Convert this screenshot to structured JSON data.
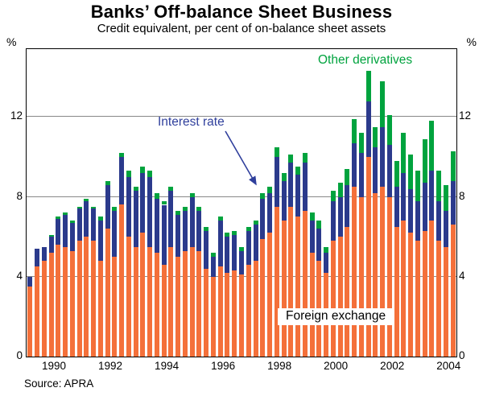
{
  "page": {
    "title": "Banks’ Off-balance Sheet Business",
    "subtitle": "Credit equivalent, per cent of on-balance sheet assets",
    "source": "Source: APRA"
  },
  "annotations": {
    "other_derivatives": "Other derivatives",
    "interest_rate": "Interest rate",
    "foreign_exchange": "Foreign exchange"
  },
  "colors": {
    "foreign_exchange": "#f4703a",
    "interest_rate": "#2b3a8c",
    "other_derivatives": "#00a33e",
    "interest_rate_annotation": "#2f3f9c",
    "other_derivatives_annotation": "#00a33e",
    "gridline": "#888888"
  },
  "chart_data": {
    "type": "bar",
    "stacked": true,
    "title": "Banks’ Off-balance Sheet Business",
    "subtitle": "Credit equivalent, per cent of on-balance sheet assets",
    "ylabel": "%",
    "ylim": [
      0,
      15.4
    ],
    "y_ticks": [
      0,
      4,
      8,
      12
    ],
    "grid": true,
    "legend_position": "in-chart annotations",
    "x": [
      "1989Q1",
      "1989Q2",
      "1989Q3",
      "1989Q4",
      "1990Q1",
      "1990Q2",
      "1990Q3",
      "1990Q4",
      "1991Q1",
      "1991Q2",
      "1991Q3",
      "1991Q4",
      "1992Q1",
      "1992Q2",
      "1992Q3",
      "1992Q4",
      "1993Q1",
      "1993Q2",
      "1993Q3",
      "1993Q4",
      "1994Q1",
      "1994Q2",
      "1994Q3",
      "1994Q4",
      "1995Q1",
      "1995Q2",
      "1995Q3",
      "1995Q4",
      "1996Q1",
      "1996Q2",
      "1996Q3",
      "1996Q4",
      "1997Q1",
      "1997Q2",
      "1997Q3",
      "1997Q4",
      "1998Q1",
      "1998Q2",
      "1998Q3",
      "1998Q4",
      "1999Q1",
      "1999Q2",
      "1999Q3",
      "1999Q4",
      "2000Q1",
      "2000Q2",
      "2000Q3",
      "2000Q4",
      "2001Q1",
      "2001Q2",
      "2001Q3",
      "2001Q4",
      "2002Q1",
      "2002Q2",
      "2002Q3",
      "2002Q4",
      "2003Q1",
      "2003Q2",
      "2003Q3",
      "2003Q4",
      "2004Q1"
    ],
    "x_tick_years": [
      1990,
      1992,
      1994,
      1996,
      1998,
      2000,
      2002,
      2004
    ],
    "x_start_year": 1989,
    "series": [
      {
        "name": "Foreign exchange",
        "color": "#f4703a",
        "values": [
          3.5,
          4.5,
          4.8,
          5.2,
          5.6,
          5.5,
          5.3,
          5.8,
          6.0,
          5.8,
          4.8,
          6.4,
          5.0,
          7.6,
          6.0,
          5.5,
          6.2,
          5.5,
          5.2,
          4.6,
          5.5,
          5.0,
          5.3,
          5.5,
          5.3,
          4.4,
          4.0,
          4.5,
          4.2,
          4.3,
          4.1,
          4.6,
          4.8,
          5.9,
          6.2,
          7.5,
          6.8,
          7.5,
          7.0,
          7.3,
          5.2,
          4.8,
          4.2,
          5.8,
          6.0,
          6.5,
          8.5,
          8.0,
          10.0,
          8.2,
          8.5,
          8.0,
          6.5,
          6.8,
          6.2,
          5.8,
          6.3,
          6.8,
          5.8,
          5.5,
          6.6
        ]
      },
      {
        "name": "Interest rate",
        "color": "#2b3a8c",
        "values": [
          0.5,
          0.9,
          0.7,
          0.8,
          1.3,
          1.6,
          1.4,
          1.6,
          1.8,
          1.6,
          2.0,
          2.2,
          2.3,
          2.4,
          3.0,
          2.8,
          3.0,
          3.5,
          2.7,
          3.0,
          2.8,
          2.1,
          2.0,
          2.5,
          2.0,
          1.9,
          1.0,
          2.3,
          1.8,
          1.8,
          1.2,
          1.7,
          1.8,
          2.0,
          2.0,
          2.5,
          2.0,
          2.2,
          2.1,
          2.4,
          1.6,
          1.6,
          1.0,
          2.0,
          2.0,
          2.1,
          2.2,
          2.2,
          2.8,
          2.3,
          3.0,
          2.6,
          2.0,
          2.4,
          2.2,
          2.0,
          2.4,
          2.5,
          2.0,
          1.8,
          2.2
        ]
      },
      {
        "name": "Other derivatives",
        "color": "#00a33e",
        "values": [
          0,
          0,
          0,
          0.1,
          0.1,
          0.1,
          0.1,
          0.1,
          0.1,
          0.1,
          0.2,
          0.2,
          0.2,
          0.2,
          0.3,
          0.2,
          0.3,
          0.3,
          0.3,
          0.2,
          0.2,
          0.2,
          0.2,
          0.2,
          0.2,
          0.2,
          0.2,
          0.2,
          0.2,
          0.2,
          0.2,
          0.2,
          0.2,
          0.3,
          0.3,
          0.5,
          0.4,
          0.4,
          0.4,
          0.5,
          0.4,
          0.4,
          0.3,
          0.5,
          0.7,
          0.8,
          1.2,
          1.0,
          1.5,
          1.0,
          2.3,
          1.5,
          1.3,
          2.0,
          1.7,
          1.5,
          2.2,
          2.5,
          1.5,
          1.3,
          1.5
        ]
      }
    ]
  }
}
